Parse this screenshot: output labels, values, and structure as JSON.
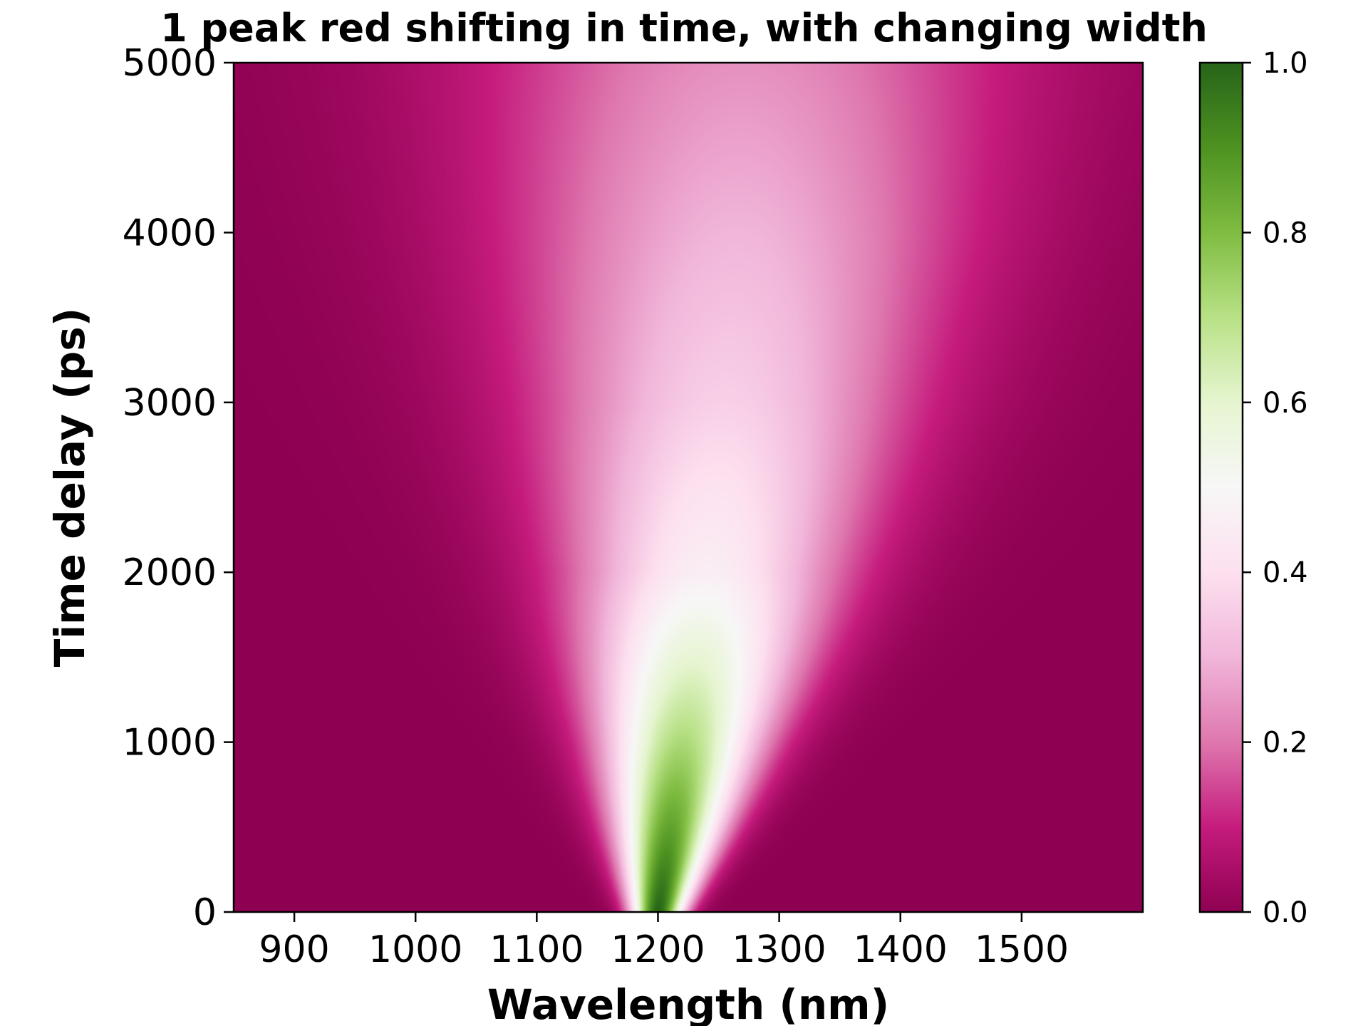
{
  "chart_data": {
    "type": "heatmap",
    "title": "1 peak red shifting in time, with changing width",
    "xlabel": "Wavelength (nm)",
    "ylabel": "Time delay (ps)",
    "xlim": [
      850,
      1600
    ],
    "ylim": [
      0,
      5000
    ],
    "xticks": [
      900,
      1000,
      1100,
      1200,
      1300,
      1400,
      1500
    ],
    "yticks": [
      0,
      1000,
      2000,
      3000,
      4000,
      5000
    ],
    "grid": false,
    "colormap": "PiYG",
    "colorbar": {
      "range": [
        0.0,
        1.0
      ],
      "ticks": [
        "0.0",
        "0.2",
        "0.4",
        "0.6",
        "0.8",
        "1.0"
      ]
    },
    "series": [
      {
        "model": "gaussian peak",
        "time_ps": [
          0,
          1000,
          2000,
          3000,
          4000,
          5000
        ],
        "center_nm": [
          1200,
          1220,
          1240,
          1255,
          1265,
          1270
        ],
        "fwhm_nm": [
          35,
          110,
          190,
          260,
          320,
          370
        ],
        "amplitude": [
          1.0,
          0.72,
          0.46,
          0.36,
          0.3,
          0.24
        ]
      }
    ]
  }
}
